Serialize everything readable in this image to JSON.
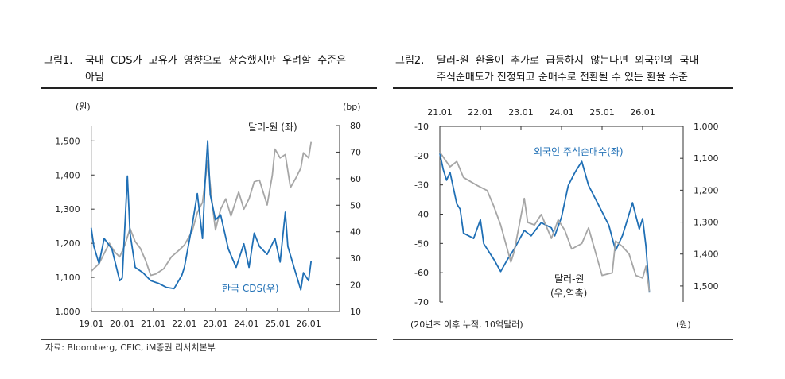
{
  "figure1": {
    "number": "그림1.",
    "title_line1": "국내  CDS가  고유가  영향으로  상승했지만  우려할  수준은",
    "title_line2": "아님"
  },
  "figure2": {
    "number": "그림2.",
    "title_line1": "달러-원  환율이  추가로  급등하지  않는다면  외국인의  국내",
    "title_line2": "주식순매도가 진정되고 순매수로 전환될 수 있는 환율 수준"
  },
  "source": "자료: Bloomberg, CEIC, iM증권 리서치본부",
  "chart_data": [
    {
      "type": "line",
      "title": "국내 CDS가 고유가 영향으로 상승했지만 우려할 수준은 아님",
      "xlim": [
        "2019-01",
        "2027-01"
      ],
      "x_ticks": [
        "19.01",
        "20.01",
        "21.01",
        "22.01",
        "23.01",
        "24.01",
        "25.01",
        "26.01"
      ],
      "left_axis": {
        "unit": "(원)",
        "ylim": [
          1000,
          1545
        ],
        "ticks": [
          1000,
          1100,
          1200,
          1300,
          1400,
          1500
        ],
        "tick_labels": [
          "1,000",
          "1,100",
          "1,200",
          "1,300",
          "1,400",
          "1,500"
        ]
      },
      "right_axis": {
        "unit": "(bp)",
        "ylim": [
          10,
          80
        ],
        "ticks": [
          10,
          20,
          30,
          40,
          50,
          60,
          70,
          80
        ],
        "tick_labels": [
          "10",
          "20",
          "30",
          "40",
          "50",
          "60",
          "70",
          "80"
        ]
      },
      "grid": false,
      "series": [
        {
          "name": "달러-원 (좌)",
          "axis": "left",
          "color": "#a6a6a6",
          "points": [
            [
              "2019-01",
              1118
            ],
            [
              "2019-04",
              1140
            ],
            [
              "2019-06",
              1170
            ],
            [
              "2019-08",
              1200
            ],
            [
              "2019-10",
              1175
            ],
            [
              "2019-12",
              1160
            ],
            [
              "2020-02",
              1195
            ],
            [
              "2020-04",
              1243
            ],
            [
              "2020-06",
              1205
            ],
            [
              "2020-08",
              1185
            ],
            [
              "2020-10",
              1150
            ],
            [
              "2020-12",
              1106
            ],
            [
              "2021-02",
              1110
            ],
            [
              "2021-05",
              1125
            ],
            [
              "2021-08",
              1160
            ],
            [
              "2021-11",
              1180
            ],
            [
              "2022-01",
              1195
            ],
            [
              "2022-04",
              1235
            ],
            [
              "2022-06",
              1290
            ],
            [
              "2022-08",
              1320
            ],
            [
              "2022-10",
              1441
            ],
            [
              "2022-12",
              1300
            ],
            [
              "2023-01",
              1239
            ],
            [
              "2023-03",
              1300
            ],
            [
              "2023-05",
              1330
            ],
            [
              "2023-07",
              1280
            ],
            [
              "2023-10",
              1350
            ],
            [
              "2023-12",
              1300
            ],
            [
              "2024-02",
              1330
            ],
            [
              "2024-04",
              1380
            ],
            [
              "2024-06",
              1385
            ],
            [
              "2024-09",
              1312
            ],
            [
              "2024-11",
              1400
            ],
            [
              "2024-12",
              1476
            ],
            [
              "2025-02",
              1450
            ],
            [
              "2025-04",
              1460
            ],
            [
              "2025-06",
              1363
            ],
            [
              "2025-08",
              1390
            ],
            [
              "2025-10",
              1420
            ],
            [
              "2025-11",
              1465
            ],
            [
              "2026-01",
              1450
            ],
            [
              "2026-02",
              1497
            ]
          ]
        },
        {
          "name": "한국 CDS(우)",
          "axis": "right",
          "color": "#1f6fb5",
          "points": [
            [
              "2019-01",
              41.5
            ],
            [
              "2019-02",
              34.5
            ],
            [
              "2019-04",
              28
            ],
            [
              "2019-06",
              37.5
            ],
            [
              "2019-09",
              33.5
            ],
            [
              "2019-12",
              21.6
            ],
            [
              "2020-01",
              22.6
            ],
            [
              "2020-03",
              61
            ],
            [
              "2020-04",
              39.5
            ],
            [
              "2020-06",
              26.6
            ],
            [
              "2020-09",
              24.6
            ],
            [
              "2020-12",
              21.6
            ],
            [
              "2021-03",
              20.6
            ],
            [
              "2021-06",
              19.1
            ],
            [
              "2021-09",
              18.6
            ],
            [
              "2021-12",
              23.6
            ],
            [
              "2022-01",
              26.6
            ],
            [
              "2022-04",
              42.5
            ],
            [
              "2022-06",
              54.4
            ],
            [
              "2022-08",
              37.5
            ],
            [
              "2022-09",
              58.4
            ],
            [
              "2022-10",
              74.3
            ],
            [
              "2022-11",
              54
            ],
            [
              "2023-01",
              44.5
            ],
            [
              "2023-03",
              46.4
            ],
            [
              "2023-06",
              33.5
            ],
            [
              "2023-09",
              26.6
            ],
            [
              "2023-12",
              35.5
            ],
            [
              "2024-02",
              26.6
            ],
            [
              "2024-04",
              39.5
            ],
            [
              "2024-06",
              34.5
            ],
            [
              "2024-09",
              31.5
            ],
            [
              "2024-12",
              37.5
            ],
            [
              "2025-02",
              28.6
            ],
            [
              "2025-04",
              47.4
            ],
            [
              "2025-05",
              34.5
            ],
            [
              "2025-08",
              24.6
            ],
            [
              "2025-10",
              18.1
            ],
            [
              "2025-11",
              24.6
            ],
            [
              "2026-01",
              21.6
            ],
            [
              "2026-02",
              29
            ]
          ]
        }
      ]
    },
    {
      "type": "line",
      "title": "달러-원 환율이 추가로 급등하지 않는다면 외국인의 국내 주식순매도가 진정되고 순매수로 전환될 수 있는 환율 수준",
      "xlim": [
        "2021-01",
        "2027-01"
      ],
      "x_ticks": [
        "21.01",
        "22.01",
        "23.01",
        "24.01",
        "25.01",
        "26.01"
      ],
      "left_axis": {
        "unit": "(20년초 이후 누적, 10억달러)",
        "ylim": [
          -70,
          -10
        ],
        "ticks": [
          -70,
          -60,
          -50,
          -40,
          -30,
          -20,
          -10
        ],
        "tick_labels": [
          "-70",
          "-60",
          "-50",
          "-40",
          "-30",
          "-20",
          "-10"
        ]
      },
      "right_axis": {
        "unit": "(원)",
        "ylim": [
          1000,
          1550
        ],
        "inverted": true,
        "ticks": [
          1000,
          1100,
          1200,
          1300,
          1400,
          1500
        ],
        "tick_labels": [
          "1,000",
          "1,100",
          "1,200",
          "1,300",
          "1,400",
          "1,500"
        ]
      },
      "grid": false,
      "series": [
        {
          "name": "외국인 주식순매수(좌)",
          "axis": "left",
          "color": "#1f6fb5",
          "points": [
            [
              "2021-01",
              -19.3
            ],
            [
              "2021-02",
              -24.7
            ],
            [
              "2021-03",
              -28.4
            ],
            [
              "2021-04",
              -25.7
            ],
            [
              "2021-06",
              -36.5
            ],
            [
              "2021-07",
              -38.3
            ],
            [
              "2021-08",
              -46.5
            ],
            [
              "2021-11",
              -48.3
            ],
            [
              "2022-01",
              -41.9
            ],
            [
              "2022-02",
              -50.1
            ],
            [
              "2022-05",
              -55.5
            ],
            [
              "2022-07",
              -59.6
            ],
            [
              "2022-09",
              -55.5
            ],
            [
              "2022-11",
              -51.9
            ],
            [
              "2023-02",
              -45.6
            ],
            [
              "2023-04",
              -47.4
            ],
            [
              "2023-07",
              -42.9
            ],
            [
              "2023-10",
              -44.7
            ],
            [
              "2023-11",
              -47.4
            ],
            [
              "2024-01",
              -41.0
            ],
            [
              "2024-03",
              -30.2
            ],
            [
              "2024-05",
              -25.7
            ],
            [
              "2024-07",
              -22.0
            ],
            [
              "2024-09",
              -30.2
            ],
            [
              "2025-01",
              -39.2
            ],
            [
              "2025-03",
              -43.8
            ],
            [
              "2025-05",
              -52.4
            ],
            [
              "2025-07",
              -47.4
            ],
            [
              "2025-08",
              -43.8
            ],
            [
              "2025-10",
              -36.1
            ],
            [
              "2025-12",
              -45.1
            ],
            [
              "2026-01",
              -41.5
            ],
            [
              "2026-02",
              -51.0
            ],
            [
              "2026-03",
              -66.8
            ]
          ]
        },
        {
          "name": "달러-원 (우,역축)",
          "axis": "right",
          "color": "#a6a6a6",
          "points": [
            [
              "2021-01",
              1081
            ],
            [
              "2021-04",
              1127
            ],
            [
              "2021-06",
              1110
            ],
            [
              "2021-08",
              1160
            ],
            [
              "2021-12",
              1185
            ],
            [
              "2022-03",
              1201
            ],
            [
              "2022-05",
              1251
            ],
            [
              "2022-07",
              1309
            ],
            [
              "2022-10",
              1425
            ],
            [
              "2022-11",
              1392
            ],
            [
              "2023-02",
              1226
            ],
            [
              "2023-03",
              1301
            ],
            [
              "2023-05",
              1309
            ],
            [
              "2023-07",
              1276
            ],
            [
              "2023-10",
              1351
            ],
            [
              "2023-12",
              1293
            ],
            [
              "2024-02",
              1326
            ],
            [
              "2024-04",
              1384
            ],
            [
              "2024-07",
              1367
            ],
            [
              "2024-09",
              1318
            ],
            [
              "2025-01",
              1467
            ],
            [
              "2025-04",
              1459
            ],
            [
              "2025-05",
              1359
            ],
            [
              "2025-07",
              1376
            ],
            [
              "2025-09",
              1400
            ],
            [
              "2025-11",
              1467
            ],
            [
              "2026-01",
              1475
            ],
            [
              "2026-02",
              1438
            ],
            [
              "2026-03",
              1517
            ]
          ]
        }
      ],
      "labels": {
        "series1": "외국인 주식순매수(좌)",
        "series2_line1": "달러-원",
        "series2_line2": "(우,역축)"
      }
    }
  ]
}
